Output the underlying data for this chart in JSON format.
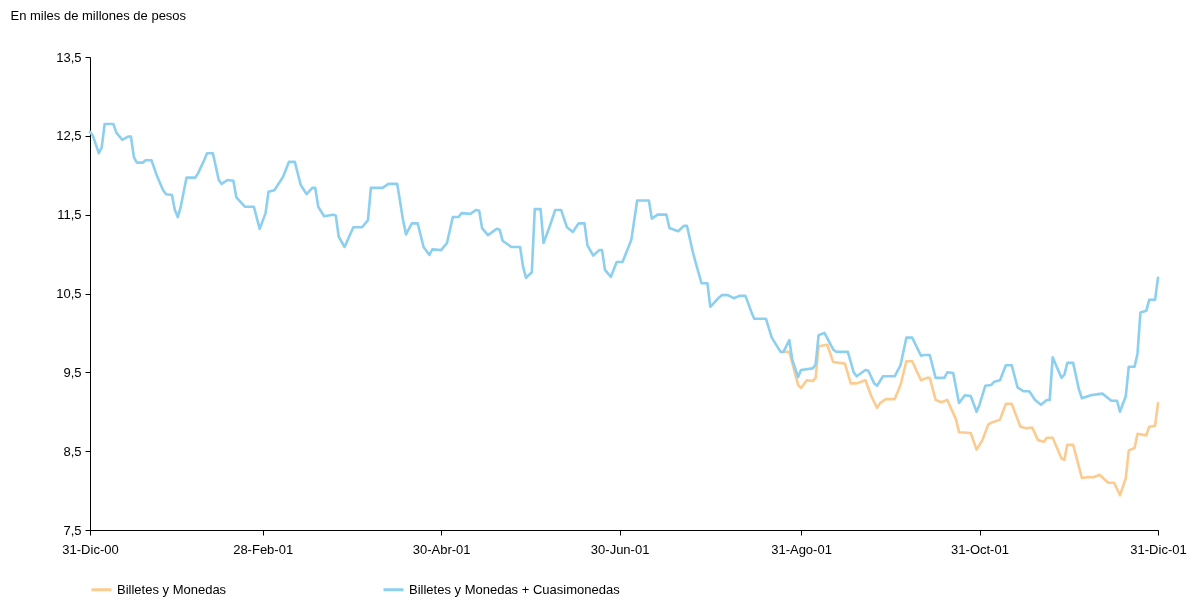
{
  "chart_data": {
    "type": "line",
    "ylabel": "En miles de millones  de pesos",
    "xlim": [
      "2000-12-31",
      "2001-12-31"
    ],
    "xticks": [
      {
        "value": "2000-12-31",
        "label": "31-Dic-00"
      },
      {
        "value": "2001-02-28",
        "label": "28-Feb-01"
      },
      {
        "value": "2001-04-30",
        "label": "30-Abr-01"
      },
      {
        "value": "2001-06-30",
        "label": "30-Jun-01"
      },
      {
        "value": "2001-08-31",
        "label": "31-Ago-01"
      },
      {
        "value": "2001-10-31",
        "label": "31-Oct-01"
      },
      {
        "value": "2001-12-31",
        "label": "31-Dic-01"
      }
    ],
    "ylim": [
      7.5,
      13.5
    ],
    "yticks": [
      {
        "value": 7.5,
        "label": "7,5"
      },
      {
        "value": 8.5,
        "label": "8,5"
      },
      {
        "value": 9.5,
        "label": "9,5"
      },
      {
        "value": 10.5,
        "label": "10,5"
      },
      {
        "value": 11.5,
        "label": "11,5"
      },
      {
        "value": 12.5,
        "label": "12,5"
      },
      {
        "value": 13.5,
        "label": "13,5"
      }
    ],
    "grid": false,
    "legend": "bottom",
    "marker": "none",
    "line_style": "solid",
    "series": [
      {
        "name": "Billetes y Monedas",
        "color": "#fbcb8f",
        "x": [
          "2001-08-25",
          "2001-08-27",
          "2001-08-30",
          "2001-08-31",
          "2001-09-02",
          "2001-09-04",
          "2001-09-05",
          "2001-09-06",
          "2001-09-09",
          "2001-09-11",
          "2001-09-15",
          "2001-09-17",
          "2001-09-19",
          "2001-09-22",
          "2001-09-24",
          "2001-09-26",
          "2001-09-27",
          "2001-09-29",
          "2001-10-02",
          "2001-10-04",
          "2001-10-06",
          "2001-10-08",
          "2001-10-11",
          "2001-10-13",
          "2001-10-14",
          "2001-10-16",
          "2001-10-18",
          "2001-10-20",
          "2001-10-23",
          "2001-10-24",
          "2001-10-28",
          "2001-10-30",
          "2001-11-01",
          "2001-11-03",
          "2001-11-04",
          "2001-11-07",
          "2001-11-09",
          "2001-11-11",
          "2001-11-14",
          "2001-11-16",
          "2001-11-18",
          "2001-11-20",
          "2001-11-22",
          "2001-11-23",
          "2001-11-25",
          "2001-11-28",
          "2001-11-29",
          "2001-11-30",
          "2001-12-02",
          "2001-12-05",
          "2001-12-07",
          "2001-12-09",
          "2001-12-11",
          "2001-12-14",
          "2001-12-16",
          "2001-12-18",
          "2001-12-20",
          "2001-12-21",
          "2001-12-23",
          "2001-12-24",
          "2001-12-27",
          "2001-12-28",
          "2001-12-30",
          "2001-12-31"
        ],
        "values": [
          9.76,
          9.76,
          9.34,
          9.3,
          9.4,
          9.39,
          9.43,
          9.83,
          9.85,
          9.63,
          9.61,
          9.36,
          9.36,
          9.4,
          9.2,
          9.05,
          9.11,
          9.16,
          9.16,
          9.34,
          9.64,
          9.64,
          9.4,
          9.43,
          9.43,
          9.15,
          9.12,
          9.15,
          8.9,
          8.74,
          8.73,
          8.52,
          8.64,
          8.84,
          8.86,
          8.9,
          9.1,
          9.1,
          8.81,
          8.79,
          8.8,
          8.64,
          8.62,
          8.67,
          8.67,
          8.41,
          8.39,
          8.58,
          8.58,
          8.16,
          8.17,
          8.17,
          8.2,
          8.1,
          8.1,
          7.94,
          8.16,
          8.51,
          8.54,
          8.72,
          8.7,
          8.81,
          8.82,
          9.11
        ]
      },
      {
        "name": "Billetes y Monedas + Cuasimonedas",
        "color": "#8ccfee",
        "x": [
          "2000-12-31",
          "2001-01-01",
          "2001-01-03",
          "2001-01-04",
          "2001-01-05",
          "2001-01-08",
          "2001-01-09",
          "2001-01-11",
          "2001-01-13",
          "2001-01-14",
          "2001-01-15",
          "2001-01-16",
          "2001-01-18",
          "2001-01-19",
          "2001-01-21",
          "2001-01-23",
          "2001-01-25",
          "2001-01-26",
          "2001-01-28",
          "2001-01-29",
          "2001-01-30",
          "2001-01-31",
          "2001-02-02",
          "2001-02-05",
          "2001-02-06",
          "2001-02-08",
          "2001-02-09",
          "2001-02-11",
          "2001-02-13",
          "2001-02-14",
          "2001-02-16",
          "2001-02-18",
          "2001-02-19",
          "2001-02-22",
          "2001-02-25",
          "2001-02-27",
          "2001-03-01",
          "2001-03-02",
          "2001-03-04",
          "2001-03-07",
          "2001-03-09",
          "2001-03-11",
          "2001-03-13",
          "2001-03-15",
          "2001-03-17",
          "2001-03-18",
          "2001-03-19",
          "2001-03-21",
          "2001-03-24",
          "2001-03-25",
          "2001-03-26",
          "2001-03-28",
          "2001-03-31",
          "2001-04-03",
          "2001-04-05",
          "2001-04-06",
          "2001-04-10",
          "2001-04-12",
          "2001-04-15",
          "2001-04-17",
          "2001-04-18",
          "2001-04-20",
          "2001-04-22",
          "2001-04-24",
          "2001-04-26",
          "2001-04-27",
          "2001-04-30",
          "2001-05-02",
          "2001-05-04",
          "2001-05-06",
          "2001-05-07",
          "2001-05-10",
          "2001-05-12",
          "2001-05-13",
          "2001-05-14",
          "2001-05-16",
          "2001-05-19",
          "2001-05-20",
          "2001-05-21",
          "2001-05-24",
          "2001-05-27",
          "2001-05-28",
          "2001-05-29",
          "2001-05-31",
          "2001-06-01",
          "2001-06-03",
          "2001-06-04",
          "2001-06-06",
          "2001-06-08",
          "2001-06-10",
          "2001-06-12",
          "2001-06-14",
          "2001-06-16",
          "2001-06-18",
          "2001-06-19",
          "2001-06-21",
          "2001-06-23",
          "2001-06-24",
          "2001-06-25",
          "2001-06-27",
          "2001-06-29",
          "2001-07-01",
          "2001-07-04",
          "2001-07-06",
          "2001-07-10",
          "2001-07-11",
          "2001-07-13",
          "2001-07-16",
          "2001-07-17",
          "2001-07-20",
          "2001-07-22",
          "2001-07-23",
          "2001-07-25",
          "2001-07-26",
          "2001-07-28",
          "2001-07-30",
          "2001-07-31",
          "2001-08-03",
          "2001-08-04",
          "2001-08-06",
          "2001-08-08",
          "2001-08-10",
          "2001-08-12",
          "2001-08-14",
          "2001-08-15",
          "2001-08-19",
          "2001-08-21",
          "2001-08-24",
          "2001-08-25",
          "2001-08-27",
          "2001-08-28",
          "2001-08-30",
          "2001-08-31",
          "2001-09-04",
          "2001-09-05",
          "2001-09-06",
          "2001-09-08",
          "2001-09-11",
          "2001-09-12",
          "2001-09-16",
          "2001-09-18",
          "2001-09-19",
          "2001-09-22",
          "2001-09-23",
          "2001-09-25",
          "2001-09-26",
          "2001-09-28",
          "2001-10-02",
          "2001-10-04",
          "2001-10-06",
          "2001-10-08",
          "2001-10-11",
          "2001-10-12",
          "2001-10-14",
          "2001-10-16",
          "2001-10-19",
          "2001-10-20",
          "2001-10-22",
          "2001-10-24",
          "2001-10-26",
          "2001-10-28",
          "2001-10-30",
          "2001-10-31",
          "2001-11-02",
          "2001-11-04",
          "2001-11-05",
          "2001-11-07",
          "2001-11-09",
          "2001-11-11",
          "2001-11-13",
          "2001-11-15",
          "2001-11-17",
          "2001-11-19",
          "2001-11-21",
          "2001-11-23",
          "2001-11-24",
          "2001-11-25",
          "2001-11-28",
          "2001-11-29",
          "2001-11-30",
          "2001-12-02",
          "2001-12-04",
          "2001-12-05",
          "2001-12-08",
          "2001-12-10",
          "2001-12-12",
          "2001-12-14",
          "2001-12-15",
          "2001-12-17",
          "2001-12-18",
          "2001-12-20",
          "2001-12-21",
          "2001-12-23",
          "2001-12-24",
          "2001-12-25",
          "2001-12-27",
          "2001-12-28",
          "2001-12-30",
          "2001-12-31"
        ],
        "values": [
          12.55,
          12.5,
          12.28,
          12.35,
          12.65,
          12.65,
          12.54,
          12.45,
          12.49,
          12.49,
          12.23,
          12.16,
          12.16,
          12.19,
          12.19,
          11.98,
          11.81,
          11.76,
          11.75,
          11.56,
          11.47,
          11.6,
          11.97,
          11.97,
          12.03,
          12.19,
          12.28,
          12.28,
          11.94,
          11.89,
          11.94,
          11.93,
          11.72,
          11.6,
          11.6,
          11.32,
          11.52,
          11.79,
          11.81,
          11.98,
          12.17,
          12.17,
          11.88,
          11.76,
          11.84,
          11.84,
          11.6,
          11.48,
          11.5,
          11.49,
          11.22,
          11.09,
          11.34,
          11.34,
          11.43,
          11.84,
          11.84,
          11.89,
          11.89,
          11.43,
          11.25,
          11.39,
          11.39,
          11.09,
          10.99,
          11.06,
          11.05,
          11.14,
          11.47,
          11.47,
          11.52,
          11.51,
          11.56,
          11.55,
          11.33,
          11.24,
          11.32,
          11.31,
          11.17,
          11.09,
          11.09,
          10.84,
          10.7,
          10.77,
          11.57,
          11.57,
          11.14,
          11.34,
          11.56,
          11.56,
          11.34,
          11.28,
          11.39,
          11.39,
          11.11,
          10.98,
          11.05,
          11.05,
          10.8,
          10.71,
          10.9,
          10.9,
          11.18,
          11.68,
          11.68,
          11.45,
          11.5,
          11.5,
          11.33,
          11.29,
          11.36,
          11.36,
          11.03,
          10.89,
          10.63,
          10.63,
          10.33,
          10.45,
          10.48,
          10.48,
          10.44,
          10.47,
          10.47,
          10.27,
          10.18,
          10.18,
          9.94,
          9.76,
          9.76,
          9.91,
          9.66,
          9.44,
          9.53,
          9.55,
          9.6,
          9.97,
          10.0,
          9.79,
          9.76,
          9.76,
          9.5,
          9.45,
          9.53,
          9.52,
          9.36,
          9.33,
          9.45,
          9.45,
          9.59,
          9.94,
          9.94,
          9.71,
          9.72,
          9.72,
          9.43,
          9.43,
          9.5,
          9.49,
          9.11,
          9.21,
          9.2,
          9.0,
          9.09,
          9.33,
          9.34,
          9.38,
          9.4,
          9.59,
          9.59,
          9.31,
          9.26,
          9.26,
          9.15,
          9.09,
          9.15,
          9.15,
          9.69,
          9.43,
          9.47,
          9.62,
          9.62,
          9.28,
          9.17,
          9.21,
          9.22,
          9.23,
          9.17,
          9.14,
          9.14,
          9.0,
          9.2,
          9.57,
          9.57,
          9.74,
          10.26,
          10.28,
          10.42,
          10.42,
          10.7
        ]
      }
    ]
  }
}
